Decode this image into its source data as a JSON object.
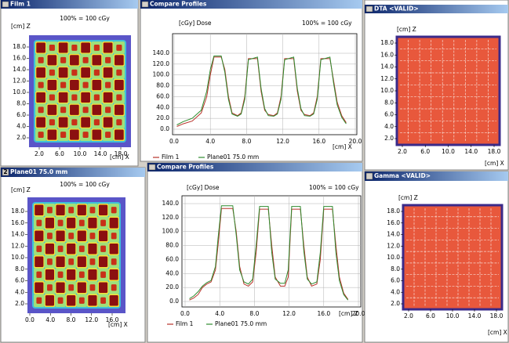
{
  "panels": [
    {
      "title": "Film 1",
      "scale": "100% = 100 cGy",
      "y_label": "[cm] Z",
      "x_label": "[cm] X",
      "yticks": [
        {
          "value": 2,
          "label": "2.0"
        },
        {
          "value": 4,
          "label": "4.0"
        },
        {
          "value": 6,
          "label": "6.0"
        },
        {
          "value": 8,
          "label": "8.0"
        },
        {
          "value": 10,
          "label": "10.0"
        },
        {
          "value": 12,
          "label": "12.0"
        },
        {
          "value": 14,
          "label": "14.0"
        },
        {
          "value": 16,
          "label": "16.0"
        },
        {
          "value": 18,
          "label": "18.0"
        }
      ],
      "xticks": [
        {
          "value": 2,
          "label": "2.0"
        },
        {
          "value": 6,
          "label": "6.0"
        },
        {
          "value": 10,
          "label": "10.0"
        },
        {
          "value": 14,
          "label": "14.0"
        },
        {
          "value": 18,
          "label": "18.0"
        }
      ]
    },
    {
      "title": "Compare Profiles",
      "y_label": "[cGy] Dose",
      "scale": "100% = 100 cGy",
      "x_label": "[cm] X",
      "yticks": [
        {
          "value": 0,
          "label": "0.0"
        },
        {
          "value": 20,
          "label": "20.0"
        },
        {
          "value": 40,
          "label": "40.0"
        },
        {
          "value": 60,
          "label": "60.0"
        },
        {
          "value": 80,
          "label": "80.0"
        },
        {
          "value": 100,
          "label": "100.0"
        },
        {
          "value": 120,
          "label": "120.0"
        },
        {
          "value": 140,
          "label": "140.0"
        }
      ],
      "xticks": [
        {
          "value": 0,
          "label": "0.0"
        },
        {
          "value": 4,
          "label": "4.0"
        },
        {
          "value": 8,
          "label": "8.0"
        },
        {
          "value": 12,
          "label": "12.0"
        },
        {
          "value": 16,
          "label": "16.0"
        },
        {
          "value": 20,
          "label": "20.0"
        }
      ],
      "x": [
        0.3,
        1,
        2,
        3,
        3.6,
        4,
        4.4,
        5.2,
        5.6,
        6,
        6.4,
        7,
        7.4,
        7.8,
        8.2,
        9.2,
        9.6,
        10,
        10.4,
        11,
        11.4,
        11.8,
        12.2,
        13.2,
        13.6,
        14,
        14.4,
        15,
        15.4,
        15.8,
        16.2,
        17.2,
        17.6,
        18,
        18.5,
        19
      ],
      "series": [
        {
          "name": "Film 1",
          "color": "#b8322a",
          "values": [
            5,
            10,
            15,
            30,
            60,
            100,
            133,
            133,
            110,
            60,
            30,
            25,
            30,
            60,
            130,
            130,
            70,
            35,
            27,
            25,
            30,
            60,
            130,
            130,
            70,
            35,
            27,
            25,
            30,
            60,
            130,
            130,
            90,
            50,
            25,
            12
          ]
        },
        {
          "name": "Plane01 75.0 mm",
          "color": "#2e8b2e",
          "values": [
            8,
            14,
            20,
            35,
            70,
            110,
            135,
            135,
            105,
            55,
            28,
            24,
            28,
            55,
            128,
            133,
            75,
            38,
            25,
            24,
            28,
            55,
            128,
            133,
            75,
            38,
            25,
            24,
            28,
            55,
            128,
            133,
            85,
            45,
            22,
            10
          ]
        }
      ]
    },
    {
      "title": "DTA <VALID>",
      "y_label": "[cm] Z",
      "x_label": "[cm] X",
      "yticks": [
        {
          "value": 2,
          "label": "2.0"
        },
        {
          "value": 4,
          "label": "4.0"
        },
        {
          "value": 6,
          "label": "6.0"
        },
        {
          "value": 8,
          "label": "8.0"
        },
        {
          "value": 10,
          "label": "10.0"
        },
        {
          "value": 12,
          "label": "12.0"
        },
        {
          "value": 14,
          "label": "14.0"
        },
        {
          "value": 16,
          "label": "16.0"
        },
        {
          "value": 18,
          "label": "18.0"
        }
      ],
      "xticks": [
        {
          "value": 2,
          "label": "2.0"
        },
        {
          "value": 6,
          "label": "6.0"
        },
        {
          "value": 10,
          "label": "10.0"
        },
        {
          "value": 14,
          "label": "14.0"
        },
        {
          "value": 18,
          "label": "18.0"
        }
      ]
    },
    {
      "badge": "2",
      "title": "Plane01 75.0 mm",
      "scale": "100% = 100 cGy",
      "y_label": "[cm] Z",
      "x_label": "[cm] X",
      "yticks": [
        {
          "value": 2,
          "label": "2.0"
        },
        {
          "value": 4,
          "label": "4.0"
        },
        {
          "value": 6,
          "label": "6.0"
        },
        {
          "value": 8,
          "label": "8.0"
        },
        {
          "value": 10,
          "label": "10.0"
        },
        {
          "value": 12,
          "label": "12.0"
        },
        {
          "value": 14,
          "label": "14.0"
        },
        {
          "value": 16,
          "label": "16.0"
        },
        {
          "value": 18,
          "label": "18.0"
        }
      ],
      "xticks": [
        {
          "value": 0,
          "label": "0.0"
        },
        {
          "value": 4,
          "label": "4.0"
        },
        {
          "value": 8,
          "label": "8.0"
        },
        {
          "value": 12,
          "label": "12.0"
        },
        {
          "value": 16,
          "label": "16.0"
        }
      ]
    },
    {
      "title": "Compare Profiles",
      "y_label": "[cGy] Dose",
      "scale": "100% = 100 cGy",
      "x_label": "[cm] Z",
      "yticks": [
        {
          "value": 0,
          "label": "0.0"
        },
        {
          "value": 20,
          "label": "20.0"
        },
        {
          "value": 40,
          "label": "40.0"
        },
        {
          "value": 60,
          "label": "60.0"
        },
        {
          "value": 80,
          "label": "80.0"
        },
        {
          "value": 100,
          "label": "100.0"
        },
        {
          "value": 120,
          "label": "120.0"
        },
        {
          "value": 140,
          "label": "140.0"
        }
      ],
      "xticks": [
        {
          "value": 0,
          "label": "0.0"
        },
        {
          "value": 4,
          "label": "4.0"
        },
        {
          "value": 8,
          "label": "8.0"
        },
        {
          "value": 12,
          "label": "12.0"
        },
        {
          "value": 16,
          "label": "16.0"
        },
        {
          "value": 20,
          "label": "20.0"
        }
      ],
      "x": [
        0.5,
        1,
        1.5,
        2,
        2.5,
        3,
        3.5,
        3.8,
        4.2,
        5.5,
        5.9,
        6.3,
        6.8,
        7.3,
        7.8,
        8.2,
        8.6,
        9.6,
        10,
        10.4,
        11,
        11.5,
        11.9,
        12.3,
        13.3,
        13.7,
        14.1,
        14.6,
        15.2,
        15.6,
        16,
        17,
        17.4,
        17.8,
        18.3,
        18.8
      ],
      "series": [
        {
          "name": "Film 1",
          "color": "#b8322a",
          "values": [
            2,
            5,
            10,
            20,
            25,
            28,
            45,
            80,
            133,
            133,
            100,
            50,
            25,
            22,
            28,
            70,
            132,
            132,
            80,
            35,
            22,
            22,
            35,
            132,
            132,
            80,
            35,
            22,
            25,
            60,
            132,
            132,
            80,
            35,
            12,
            3
          ]
        },
        {
          "name": "Plane01 75.0 mm",
          "color": "#2e8b2e",
          "values": [
            4,
            8,
            14,
            22,
            27,
            30,
            50,
            90,
            137,
            137,
            95,
            45,
            28,
            25,
            32,
            80,
            136,
            136,
            70,
            32,
            26,
            26,
            45,
            136,
            136,
            72,
            32,
            25,
            28,
            70,
            136,
            136,
            70,
            30,
            10,
            2
          ]
        }
      ]
    },
    {
      "title": "Gamma <VALID>",
      "y_label": "[cm] Z",
      "x_label": "[cm] X",
      "yticks": [
        {
          "value": 2,
          "label": "2.0"
        },
        {
          "value": 4,
          "label": "4.0"
        },
        {
          "value": 6,
          "label": "6.0"
        },
        {
          "value": 8,
          "label": "8.0"
        },
        {
          "value": 10,
          "label": "10.0"
        },
        {
          "value": 12,
          "label": "12.0"
        },
        {
          "value": 14,
          "label": "14.0"
        },
        {
          "value": 16,
          "label": "16.0"
        },
        {
          "value": 18,
          "label": "18.0"
        }
      ],
      "xticks": [
        {
          "value": 2,
          "label": "2.0"
        },
        {
          "value": 6,
          "label": "6.0"
        },
        {
          "value": 10,
          "label": "10.0"
        },
        {
          "value": 14,
          "label": "14.0"
        },
        {
          "value": 18,
          "label": "18.0"
        }
      ]
    }
  ]
}
